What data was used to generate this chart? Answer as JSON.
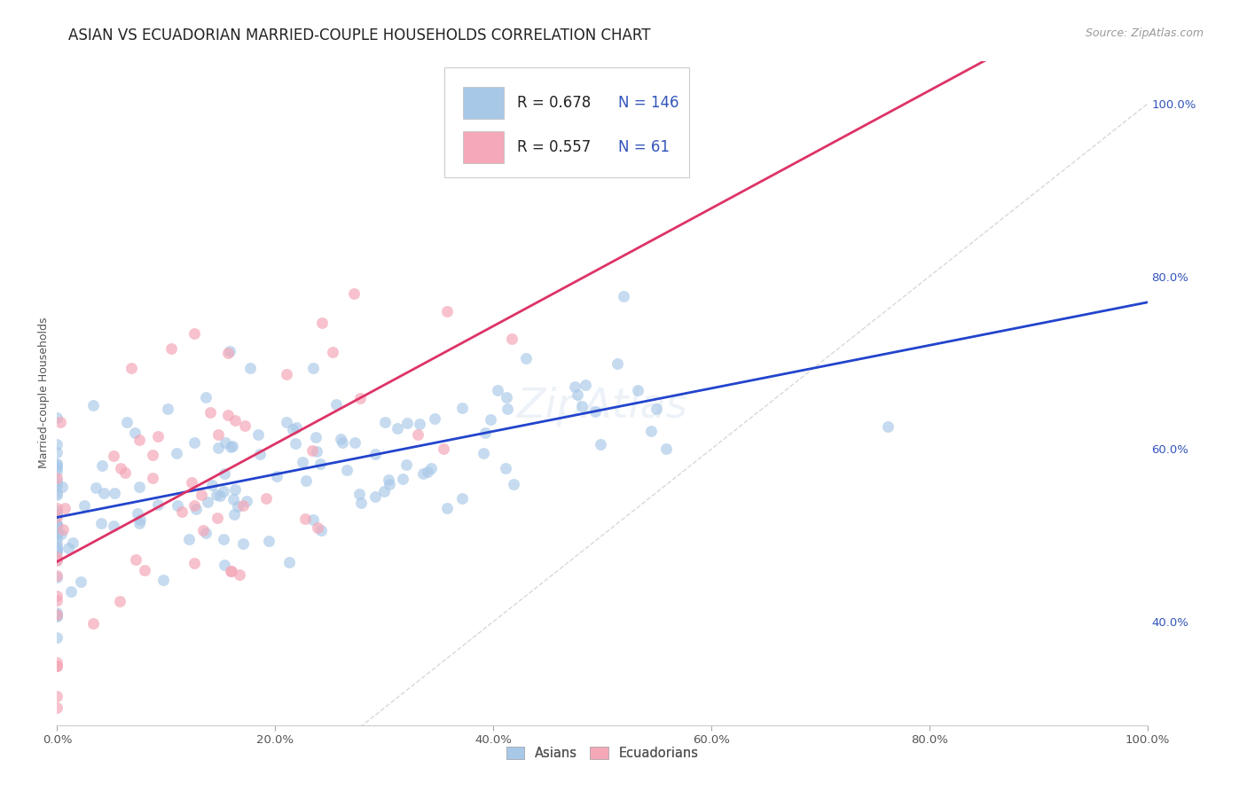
{
  "title": "ASIAN VS ECUADORIAN MARRIED-COUPLE HOUSEHOLDS CORRELATION CHART",
  "source": "Source: ZipAtlas.com",
  "ylabel": "Married-couple Households",
  "legend_entries": [
    {
      "label": "Asians",
      "R": "0.678",
      "N": "146",
      "color": "#a8c8e8",
      "text_color": "#3355bb"
    },
    {
      "label": "Ecuadorians",
      "R": "0.557",
      "N": "61",
      "color": "#f4a8b8",
      "text_color": "#cc3366"
    }
  ],
  "asian_R": 0.678,
  "asian_N": 146,
  "ecuadorian_R": 0.557,
  "ecuadorian_N": 61,
  "asian_color": "#a8c8e8",
  "ecuadorian_color": "#f4a8b8",
  "trend_asian_color": "#2244cc",
  "trend_ecua_color": "#dd3366",
  "diagonal_color": "#c8c8c8",
  "background_color": "#ffffff",
  "grid_color": "#dddddd",
  "title_color": "#222222",
  "title_fontsize": 12,
  "source_fontsize": 9,
  "axis_label_fontsize": 9,
  "tick_fontsize": 9.5,
  "legend_fontsize": 12,
  "legend_N_color": "#3355bb",
  "legend_R_color": "#222222",
  "seed": 77
}
